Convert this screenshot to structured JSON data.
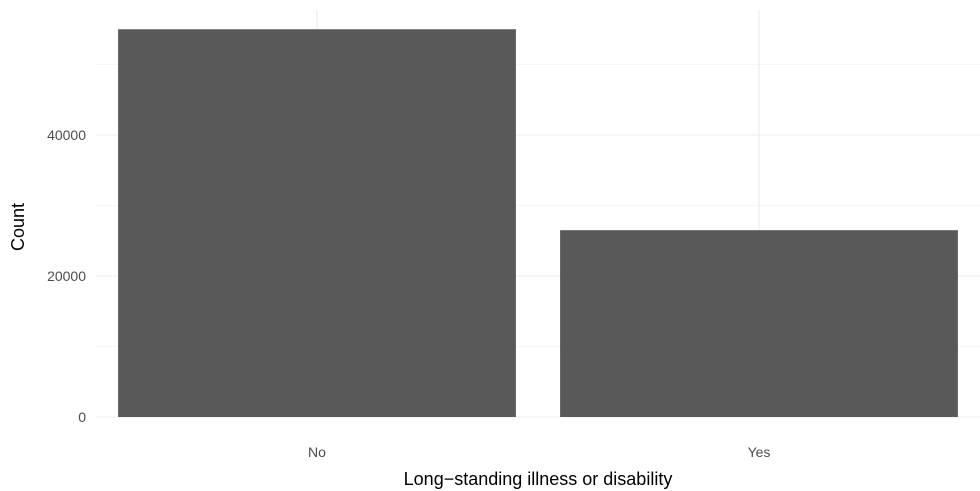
{
  "chart_data": {
    "type": "bar",
    "xlabel": "Long−standing illness or disability",
    "ylabel": "Count",
    "categories": [
      "No",
      "Yes"
    ],
    "values": [
      55000,
      26500
    ],
    "ylim": [
      0,
      55000
    ],
    "yticks": [
      0,
      20000,
      40000
    ],
    "ytick_labels": [
      "0",
      "20000",
      "40000"
    ],
    "grid": true,
    "bar_color": "#595959",
    "grid_color": "#ebebeb"
  }
}
